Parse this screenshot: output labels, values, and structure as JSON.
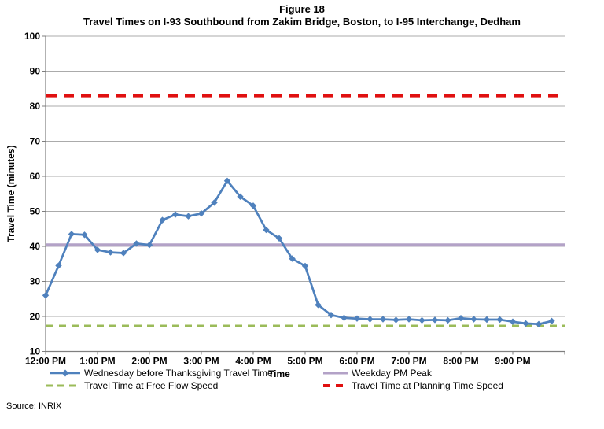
{
  "header": {
    "figure_label": "Figure 18",
    "title": "Travel Times on I-93 Southbound from Zakim Bridge, Boston, to I-95 Interchange, Dedham"
  },
  "source_note": "Source: INRIX",
  "chart_data": {
    "type": "line",
    "title": "Travel Times on I-93 Southbound from Zakim Bridge, Boston, to I-95 Interchange, Dedham",
    "xlabel": "Time",
    "ylabel": "Travel Time (minutes)",
    "ylim": [
      10,
      100
    ],
    "grid": true,
    "legend_position": "bottom",
    "y_ticks": [
      10,
      20,
      30,
      40,
      50,
      60,
      70,
      80,
      90,
      100
    ],
    "x_tick_labels": [
      "12:00 PM",
      "1:00 PM",
      "2:00 PM",
      "3:00 PM",
      "4:00 PM",
      "5:00 PM",
      "6:00 PM",
      "7:00 PM",
      "8:00 PM",
      "9:00 PM"
    ],
    "x": [
      "12:00 PM",
      "12:15 PM",
      "12:30 PM",
      "12:45 PM",
      "1:00 PM",
      "1:15 PM",
      "1:30 PM",
      "1:45 PM",
      "2:00 PM",
      "2:15 PM",
      "2:30 PM",
      "2:45 PM",
      "3:00 PM",
      "3:15 PM",
      "3:30 PM",
      "3:45 PM",
      "4:00 PM",
      "4:15 PM",
      "4:30 PM",
      "4:45 PM",
      "5:00 PM",
      "5:15 PM",
      "5:30 PM",
      "5:45 PM",
      "6:00 PM",
      "6:15 PM",
      "6:30 PM",
      "6:45 PM",
      "7:00 PM",
      "7:15 PM",
      "7:30 PM",
      "7:45 PM",
      "8:00 PM",
      "8:15 PM",
      "8:30 PM",
      "8:45 PM",
      "9:00 PM",
      "9:15 PM",
      "9:30 PM",
      "9:45 PM"
    ],
    "series": [
      {
        "name": "Wednesday before Thanksgiving Travel Time",
        "color": "#4F81BD",
        "marker": "diamond",
        "values": [
          26,
          34.5,
          43.5,
          43.3,
          39,
          38.3,
          38.1,
          40.8,
          40.4,
          47.5,
          49.1,
          48.6,
          49.4,
          52.5,
          58.7,
          54.2,
          51.6,
          44.7,
          42.3,
          36.5,
          34.4,
          23.3,
          20.4,
          19.6,
          19.4,
          19.2,
          19.2,
          19.0,
          19.2,
          18.9,
          19.0,
          18.9,
          19.5,
          19.2,
          19.1,
          19.1,
          18.5,
          18.0,
          17.8,
          18.7
        ]
      }
    ],
    "reference_lines": [
      {
        "name": "Weekday PM Peak",
        "value": 40.4,
        "color": "#B3A2C7",
        "style": "solid",
        "width": 4,
        "dash": ""
      },
      {
        "name": "Travel Time at Free Flow Speed",
        "value": 17.3,
        "color": "#9BBB59",
        "style": "dashed",
        "width": 3,
        "dash": "9 7"
      },
      {
        "name": "Travel Time at Planning Time Speed",
        "value": 83,
        "color": "#E01010",
        "style": "dashed",
        "width": 4,
        "dash": "13 9"
      }
    ]
  }
}
